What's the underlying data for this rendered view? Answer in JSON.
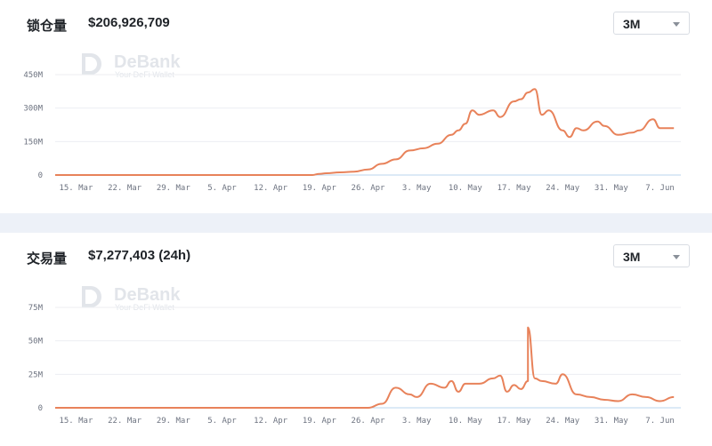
{
  "charts": [
    {
      "label": "锁仓量",
      "value": "$206,926,709",
      "range": "3M"
    },
    {
      "label": "交易量",
      "value": "$7,277,403 (24h)",
      "range": "3M"
    }
  ],
  "watermark": {
    "name": "DeBank",
    "tagline": "Your DeFi Wallet"
  },
  "colors": {
    "line": "#e8825a",
    "baseline": "#b8d4ee",
    "grid": "#eceef2",
    "separator": "#edf1f8"
  },
  "chart_data": [
    {
      "type": "line",
      "title": "锁仓量",
      "x_ticks": [
        "15. Mar",
        "22. Mar",
        "29. Mar",
        "5. Apr",
        "12. Apr",
        "19. Apr",
        "26. Apr",
        "3. May",
        "10. May",
        "17. May",
        "24. May",
        "31. May",
        "7. Jun"
      ],
      "y_ticks": [
        "0",
        "150M",
        "300M",
        "450M"
      ],
      "ylim": [
        0,
        450
      ],
      "y_unit": "M",
      "x": [
        "2020-03-12",
        "2020-04-18",
        "2020-04-19",
        "2020-04-20",
        "2020-04-22",
        "2020-04-24",
        "2020-04-26",
        "2020-04-28",
        "2020-04-30",
        "2020-05-02",
        "2020-05-04",
        "2020-05-06",
        "2020-05-08",
        "2020-05-09",
        "2020-05-10",
        "2020-05-11",
        "2020-05-12",
        "2020-05-14",
        "2020-05-15",
        "2020-05-17",
        "2020-05-18",
        "2020-05-19",
        "2020-05-20",
        "2020-05-21",
        "2020-05-22",
        "2020-05-24",
        "2020-05-25",
        "2020-05-26",
        "2020-05-27",
        "2020-05-29",
        "2020-05-30",
        "2020-06-01",
        "2020-06-03",
        "2020-06-04",
        "2020-06-06",
        "2020-06-07",
        "2020-06-09"
      ],
      "values": [
        0,
        0,
        5,
        8,
        12,
        15,
        25,
        50,
        70,
        110,
        120,
        140,
        180,
        200,
        230,
        290,
        270,
        290,
        260,
        330,
        340,
        370,
        385,
        270,
        290,
        200,
        170,
        210,
        200,
        240,
        220,
        180,
        190,
        200,
        250,
        210,
        210
      ]
    },
    {
      "type": "line",
      "title": "交易量",
      "x_ticks": [
        "15. Mar",
        "22. Mar",
        "29. Mar",
        "5. Apr",
        "12. Apr",
        "19. Apr",
        "26. Apr",
        "3. May",
        "10. May",
        "17. May",
        "24. May",
        "31. May",
        "7. Jun"
      ],
      "y_ticks": [
        "0",
        "25M",
        "50M",
        "75M"
      ],
      "ylim": [
        0,
        75
      ],
      "y_unit": "M",
      "x": [
        "2020-03-12",
        "2020-04-26",
        "2020-04-28",
        "2020-04-30",
        "2020-05-02",
        "2020-05-03",
        "2020-05-05",
        "2020-05-07",
        "2020-05-08",
        "2020-05-09",
        "2020-05-10",
        "2020-05-12",
        "2020-05-14",
        "2020-05-15",
        "2020-05-16",
        "2020-05-17",
        "2020-05-18",
        "2020-05-19",
        "2020-05-19",
        "2020-05-20",
        "2020-05-21",
        "2020-05-23",
        "2020-05-24",
        "2020-05-26",
        "2020-05-28",
        "2020-05-30",
        "2020-06-01",
        "2020-06-03",
        "2020-06-05",
        "2020-06-07",
        "2020-06-09"
      ],
      "values": [
        0,
        0,
        3,
        15,
        10,
        8,
        18,
        15,
        20,
        12,
        18,
        18,
        22,
        24,
        12,
        17,
        14,
        20,
        60,
        22,
        20,
        18,
        25,
        10,
        8,
        6,
        5,
        10,
        8,
        5,
        8
      ]
    }
  ]
}
